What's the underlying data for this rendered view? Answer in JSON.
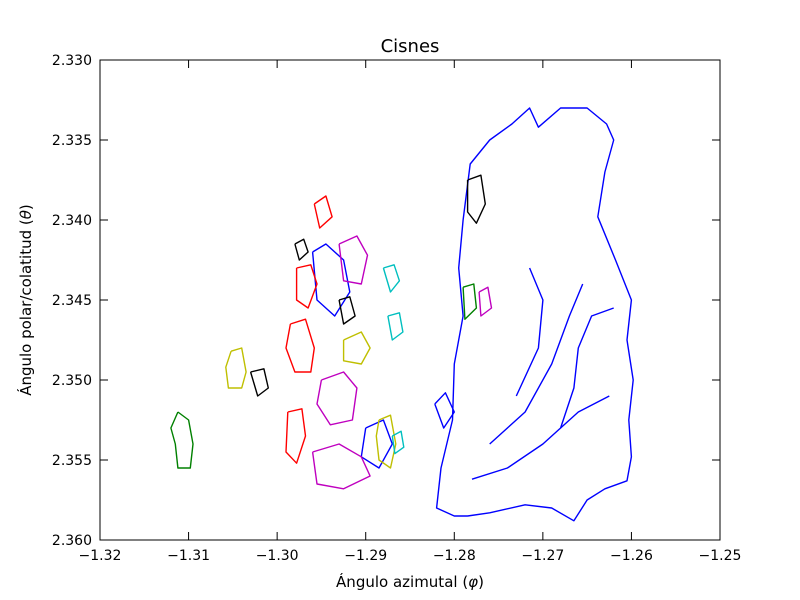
{
  "chart_data": {
    "type": "contour",
    "title": "Cisnes",
    "xlabel": "Ángulo azimutal (",
    "xlabel_symbol": "φ",
    "xlabel_end": ")",
    "ylabel": "Ángulo polar/colatitud (",
    "ylabel_symbol": "θ",
    "ylabel_end": ")",
    "xlim": [
      -1.32,
      -1.25
    ],
    "ylim": [
      2.36,
      2.33
    ],
    "y_inverted": true,
    "grid": false,
    "x_ticks": [
      -1.32,
      -1.31,
      -1.3,
      -1.29,
      -1.28,
      -1.27,
      -1.26,
      -1.25
    ],
    "x_tick_labels": [
      "−1.32",
      "−1.31",
      "−1.30",
      "−1.29",
      "−1.28",
      "−1.27",
      "−1.26",
      "−1.25"
    ],
    "y_ticks": [
      2.33,
      2.335,
      2.34,
      2.345,
      2.35,
      2.355,
      2.36
    ],
    "y_tick_labels": [
      "2.330",
      "2.335",
      "2.340",
      "2.345",
      "2.350",
      "2.355",
      "2.360"
    ],
    "colors": {
      "blue": "#0000ff",
      "green": "#008000",
      "red": "#ff0000",
      "cyan": "#00bfbf",
      "magenta": "#bf00bf",
      "olive": "#bfbf00",
      "black": "#000000"
    },
    "contours": [
      {
        "color": "blue",
        "points": [
          [
            -1.2785,
            2.3585
          ],
          [
            -1.276,
            2.3583
          ],
          [
            -1.272,
            2.3578
          ],
          [
            -1.269,
            2.358
          ],
          [
            -1.2665,
            2.3588
          ],
          [
            -1.265,
            2.3575
          ],
          [
            -1.263,
            2.3568
          ],
          [
            -1.2605,
            2.3563
          ],
          [
            -1.26,
            2.3548
          ],
          [
            -1.2603,
            2.3525
          ],
          [
            -1.2598,
            2.35
          ],
          [
            -1.2605,
            2.3475
          ],
          [
            -1.26,
            2.345
          ],
          [
            -1.2618,
            2.3425
          ],
          [
            -1.2638,
            2.3398
          ],
          [
            -1.263,
            2.337
          ],
          [
            -1.262,
            2.335
          ],
          [
            -1.2628,
            2.334
          ],
          [
            -1.265,
            2.333
          ],
          [
            -1.268,
            2.333
          ],
          [
            -1.2705,
            2.3342
          ],
          [
            -1.2715,
            2.333
          ],
          [
            -1.2735,
            2.334
          ],
          [
            -1.276,
            2.335
          ],
          [
            -1.2782,
            2.3365
          ],
          [
            -1.279,
            2.34
          ],
          [
            -1.2795,
            2.343
          ],
          [
            -1.279,
            2.346
          ],
          [
            -1.28,
            2.349
          ],
          [
            -1.2802,
            2.3525
          ],
          [
            -1.2815,
            2.3555
          ],
          [
            -1.282,
            2.358
          ],
          [
            -1.28,
            2.3585
          ],
          [
            -1.2785,
            2.3585
          ]
        ]
      },
      {
        "color": "blue",
        "points": [
          [
            -1.278,
            2.3562
          ],
          [
            -1.274,
            2.3555
          ],
          [
            -1.27,
            2.354
          ],
          [
            -1.266,
            2.352
          ],
          [
            -1.2625,
            2.351
          ]
        ]
      },
      {
        "color": "blue",
        "points": [
          [
            -1.276,
            2.354
          ],
          [
            -1.272,
            2.352
          ],
          [
            -1.269,
            2.349
          ],
          [
            -1.267,
            2.346
          ],
          [
            -1.2655,
            2.344
          ]
        ]
      },
      {
        "color": "blue",
        "points": [
          [
            -1.273,
            2.351
          ],
          [
            -1.2705,
            2.348
          ],
          [
            -1.27,
            2.345
          ],
          [
            -1.2715,
            2.343
          ]
        ]
      },
      {
        "color": "blue",
        "points": [
          [
            -1.268,
            2.353
          ],
          [
            -1.2665,
            2.3505
          ],
          [
            -1.266,
            2.348
          ],
          [
            -1.2645,
            2.346
          ],
          [
            -1.262,
            2.3455
          ]
        ]
      },
      {
        "color": "blue",
        "points": [
          [
            -1.296,
            2.342
          ],
          [
            -1.2945,
            2.3415
          ],
          [
            -1.2925,
            2.3425
          ],
          [
            -1.2918,
            2.3445
          ],
          [
            -1.2935,
            2.346
          ],
          [
            -1.2955,
            2.345
          ],
          [
            -1.296,
            2.342
          ]
        ]
      },
      {
        "color": "blue",
        "points": [
          [
            -1.29,
            2.353
          ],
          [
            -1.288,
            2.3525
          ],
          [
            -1.287,
            2.354
          ],
          [
            -1.2885,
            2.3555
          ],
          [
            -1.2905,
            2.3548
          ],
          [
            -1.29,
            2.353
          ]
        ]
      },
      {
        "color": "blue",
        "points": [
          [
            -1.2822,
            2.3515
          ],
          [
            -1.281,
            2.3508
          ],
          [
            -1.28,
            2.352
          ],
          [
            -1.2812,
            2.353
          ],
          [
            -1.2822,
            2.3515
          ]
        ]
      },
      {
        "color": "green",
        "points": [
          [
            -1.3112,
            2.352
          ],
          [
            -1.31,
            2.3525
          ],
          [
            -1.3095,
            2.354
          ],
          [
            -1.3098,
            2.3555
          ],
          [
            -1.3112,
            2.3555
          ],
          [
            -1.3115,
            2.354
          ],
          [
            -1.312,
            2.353
          ],
          [
            -1.3112,
            2.352
          ]
        ]
      },
      {
        "color": "green",
        "points": [
          [
            -1.279,
            2.3442
          ],
          [
            -1.2778,
            2.344
          ],
          [
            -1.2775,
            2.3455
          ],
          [
            -1.2788,
            2.3462
          ],
          [
            -1.279,
            2.3442
          ]
        ]
      },
      {
        "color": "red",
        "points": [
          [
            -1.2985,
            2.3465
          ],
          [
            -1.2968,
            2.3462
          ],
          [
            -1.2958,
            2.348
          ],
          [
            -1.2962,
            2.3495
          ],
          [
            -1.298,
            2.3495
          ],
          [
            -1.299,
            2.348
          ],
          [
            -1.2985,
            2.3465
          ]
        ]
      },
      {
        "color": "red",
        "points": [
          [
            -1.2978,
            2.343
          ],
          [
            -1.2962,
            2.3428
          ],
          [
            -1.2955,
            2.344
          ],
          [
            -1.2965,
            2.3455
          ],
          [
            -1.2978,
            2.345
          ],
          [
            -1.2978,
            2.343
          ]
        ]
      },
      {
        "color": "red",
        "points": [
          [
            -1.2988,
            2.352
          ],
          [
            -1.2972,
            2.3518
          ],
          [
            -1.2968,
            2.3535
          ],
          [
            -1.2978,
            2.3552
          ],
          [
            -1.299,
            2.3545
          ],
          [
            -1.2988,
            2.352
          ]
        ]
      },
      {
        "color": "red",
        "points": [
          [
            -1.2958,
            2.339
          ],
          [
            -1.2945,
            2.3385
          ],
          [
            -1.2938,
            2.3398
          ],
          [
            -1.2952,
            2.3405
          ],
          [
            -1.2958,
            2.339
          ]
        ]
      },
      {
        "color": "magenta",
        "points": [
          [
            -1.295,
            2.35
          ],
          [
            -1.2925,
            2.3495
          ],
          [
            -1.291,
            2.3505
          ],
          [
            -1.2915,
            2.3525
          ],
          [
            -1.294,
            2.3528
          ],
          [
            -1.2955,
            2.3515
          ],
          [
            -1.295,
            2.35
          ]
        ]
      },
      {
        "color": "magenta",
        "points": [
          [
            -1.296,
            2.3545
          ],
          [
            -1.293,
            2.354
          ],
          [
            -1.2905,
            2.3548
          ],
          [
            -1.2895,
            2.356
          ],
          [
            -1.2925,
            2.3568
          ],
          [
            -1.2955,
            2.3565
          ],
          [
            -1.296,
            2.3545
          ]
        ]
      },
      {
        "color": "magenta",
        "points": [
          [
            -1.293,
            2.3415
          ],
          [
            -1.291,
            2.341
          ],
          [
            -1.2898,
            2.3422
          ],
          [
            -1.2905,
            2.344
          ],
          [
            -1.2925,
            2.3438
          ],
          [
            -1.293,
            2.3415
          ]
        ]
      },
      {
        "color": "magenta",
        "points": [
          [
            -1.2772,
            2.3445
          ],
          [
            -1.2762,
            2.3442
          ],
          [
            -1.2758,
            2.3455
          ],
          [
            -1.277,
            2.346
          ],
          [
            -1.2772,
            2.3445
          ]
        ]
      },
      {
        "color": "olive",
        "points": [
          [
            -1.3052,
            2.3482
          ],
          [
            -1.304,
            2.348
          ],
          [
            -1.3035,
            2.3495
          ],
          [
            -1.304,
            2.3505
          ],
          [
            -1.3055,
            2.3505
          ],
          [
            -1.3058,
            2.3492
          ],
          [
            -1.3052,
            2.3482
          ]
        ]
      },
      {
        "color": "olive",
        "points": [
          [
            -1.2925,
            2.3475
          ],
          [
            -1.2905,
            2.347
          ],
          [
            -1.2895,
            2.348
          ],
          [
            -1.2905,
            2.349
          ],
          [
            -1.2925,
            2.3488
          ],
          [
            -1.2925,
            2.3475
          ]
        ]
      },
      {
        "color": "olive",
        "points": [
          [
            -1.2885,
            2.3525
          ],
          [
            -1.2872,
            2.3522
          ],
          [
            -1.2866,
            2.354
          ],
          [
            -1.2872,
            2.3555
          ],
          [
            -1.2885,
            2.355
          ],
          [
            -1.2888,
            2.3535
          ],
          [
            -1.2885,
            2.3525
          ]
        ]
      },
      {
        "color": "cyan",
        "points": [
          [
            -1.288,
            2.343
          ],
          [
            -1.2868,
            2.3428
          ],
          [
            -1.2862,
            2.3438
          ],
          [
            -1.2872,
            2.3445
          ],
          [
            -1.288,
            2.343
          ]
        ]
      },
      {
        "color": "cyan",
        "points": [
          [
            -1.2875,
            2.346
          ],
          [
            -1.2862,
            2.3458
          ],
          [
            -1.2858,
            2.347
          ],
          [
            -1.287,
            2.3475
          ],
          [
            -1.2875,
            2.346
          ]
        ]
      },
      {
        "color": "cyan",
        "points": [
          [
            -1.287,
            2.3535
          ],
          [
            -1.286,
            2.3532
          ],
          [
            -1.2857,
            2.3542
          ],
          [
            -1.2867,
            2.3546
          ],
          [
            -1.287,
            2.3535
          ]
        ]
      },
      {
        "color": "black",
        "points": [
          [
            -1.298,
            2.3415
          ],
          [
            -1.297,
            2.3412
          ],
          [
            -1.2965,
            2.342
          ],
          [
            -1.2975,
            2.3425
          ],
          [
            -1.298,
            2.3415
          ]
        ]
      },
      {
        "color": "black",
        "points": [
          [
            -1.303,
            2.3495
          ],
          [
            -1.3015,
            2.3493
          ],
          [
            -1.301,
            2.3505
          ],
          [
            -1.3022,
            2.351
          ],
          [
            -1.303,
            2.3495
          ]
        ]
      },
      {
        "color": "black",
        "points": [
          [
            -1.2785,
            2.3375
          ],
          [
            -1.277,
            2.3372
          ],
          [
            -1.2765,
            2.339
          ],
          [
            -1.2775,
            2.3402
          ],
          [
            -1.2785,
            2.3395
          ],
          [
            -1.2785,
            2.3375
          ]
        ]
      },
      {
        "color": "black",
        "points": [
          [
            -1.293,
            2.345
          ],
          [
            -1.2918,
            2.3448
          ],
          [
            -1.2912,
            2.346
          ],
          [
            -1.2925,
            2.3465
          ],
          [
            -1.293,
            2.345
          ]
        ]
      }
    ]
  }
}
